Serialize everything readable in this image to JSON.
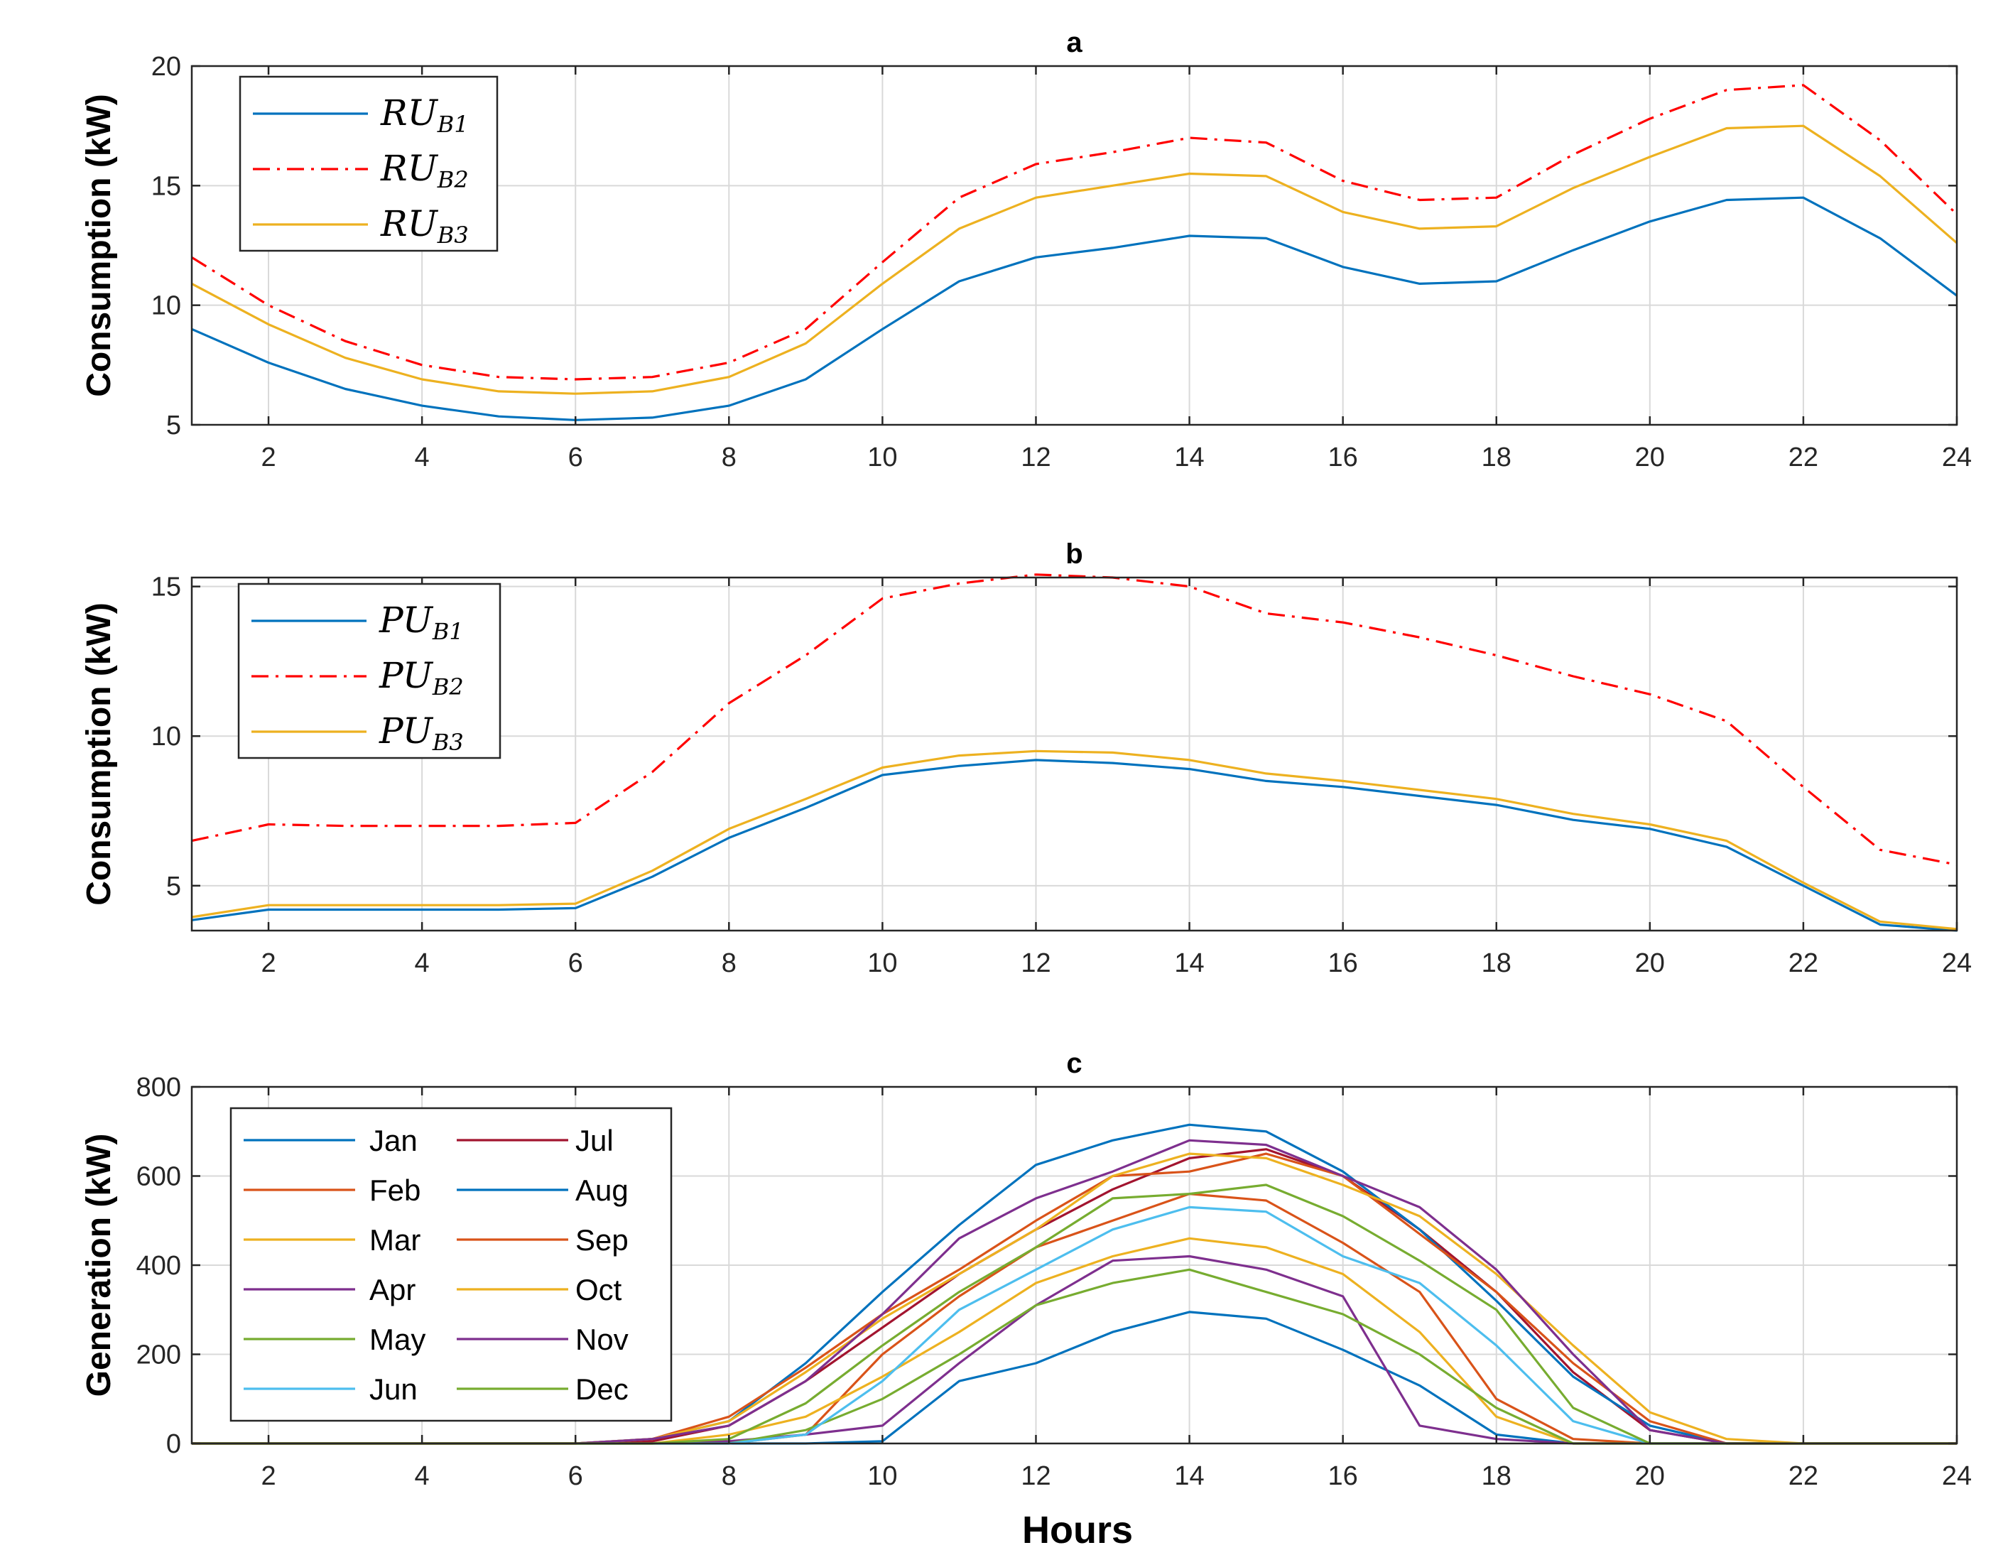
{
  "chart_data": [
    {
      "id": "a",
      "type": "line",
      "title": "a",
      "xlabel": "",
      "ylabel": "Consumption (kW)",
      "xlim": [
        1,
        24
      ],
      "ylim": [
        5,
        20
      ],
      "xticks": [
        2,
        4,
        6,
        8,
        10,
        12,
        14,
        16,
        18,
        20,
        22,
        24
      ],
      "yticks": [
        5,
        10,
        15,
        20
      ],
      "grid": true,
      "legend_position": "top-left",
      "x": [
        1,
        2,
        3,
        4,
        5,
        6,
        7,
        8,
        9,
        10,
        11,
        12,
        13,
        14,
        15,
        16,
        17,
        18,
        19,
        20,
        21,
        22,
        23,
        24
      ],
      "series": [
        {
          "name": "RU",
          "sub": "B1",
          "color": "#0072BD",
          "style": "solid",
          "values": [
            9.0,
            7.6,
            6.5,
            5.8,
            5.35,
            5.2,
            5.3,
            5.8,
            6.9,
            9.0,
            11.0,
            12.0,
            12.4,
            12.9,
            12.8,
            11.6,
            10.9,
            11.0,
            12.3,
            13.5,
            14.4,
            14.5,
            12.8,
            10.4
          ]
        },
        {
          "name": "RU",
          "sub": "B2",
          "color": "#FF0000",
          "style": "dashdot",
          "values": [
            12.0,
            10.0,
            8.5,
            7.5,
            7.0,
            6.9,
            7.0,
            7.6,
            9.0,
            11.8,
            14.5,
            15.9,
            16.4,
            17.0,
            16.8,
            15.2,
            14.4,
            14.5,
            16.3,
            17.8,
            19.0,
            19.2,
            16.9,
            13.8
          ]
        },
        {
          "name": "RU",
          "sub": "B3",
          "color": "#EDB120",
          "style": "solid",
          "values": [
            10.9,
            9.2,
            7.8,
            6.9,
            6.4,
            6.3,
            6.4,
            7.0,
            8.4,
            10.9,
            13.2,
            14.5,
            15.0,
            15.5,
            15.4,
            13.9,
            13.2,
            13.3,
            14.9,
            16.2,
            17.4,
            17.5,
            15.4,
            12.6
          ]
        }
      ]
    },
    {
      "id": "b",
      "type": "line",
      "title": "b",
      "xlabel": "",
      "ylabel": "Consumption (kW)",
      "xlim": [
        1,
        24
      ],
      "ylim": [
        3.5,
        15.3
      ],
      "xticks": [
        2,
        4,
        6,
        8,
        10,
        12,
        14,
        16,
        18,
        20,
        22,
        24
      ],
      "yticks": [
        5,
        10,
        15
      ],
      "grid": true,
      "legend_position": "top-left",
      "x": [
        1,
        2,
        3,
        4,
        5,
        6,
        7,
        8,
        9,
        10,
        11,
        12,
        13,
        14,
        15,
        16,
        17,
        18,
        19,
        20,
        21,
        22,
        23,
        24
      ],
      "series": [
        {
          "name": "PU",
          "sub": "B1",
          "color": "#0072BD",
          "style": "solid",
          "values": [
            3.85,
            4.2,
            4.2,
            4.2,
            4.2,
            4.25,
            5.3,
            6.6,
            7.6,
            8.7,
            9.0,
            9.2,
            9.1,
            8.9,
            8.5,
            8.3,
            8.0,
            7.7,
            7.2,
            6.9,
            6.3,
            5.0,
            3.7,
            3.5
          ]
        },
        {
          "name": "PU",
          "sub": "B2",
          "color": "#FF0000",
          "style": "dashdot",
          "values": [
            6.5,
            7.05,
            7.0,
            7.0,
            7.0,
            7.1,
            8.8,
            11.1,
            12.7,
            14.6,
            15.1,
            15.4,
            15.3,
            15.0,
            14.1,
            13.8,
            13.3,
            12.7,
            12.0,
            11.4,
            10.5,
            8.3,
            6.2,
            5.7
          ]
        },
        {
          "name": "PU",
          "sub": "B3",
          "color": "#EDB120",
          "style": "solid",
          "values": [
            3.95,
            4.35,
            4.35,
            4.35,
            4.35,
            4.4,
            5.5,
            6.9,
            7.9,
            8.95,
            9.35,
            9.5,
            9.45,
            9.2,
            8.75,
            8.5,
            8.2,
            7.9,
            7.4,
            7.05,
            6.5,
            5.1,
            3.8,
            3.55
          ]
        }
      ]
    },
    {
      "id": "c",
      "type": "line",
      "title": "c",
      "xlabel": "Hours",
      "ylabel": "Generation (kW)",
      "xlim": [
        1,
        24
      ],
      "ylim": [
        0,
        800
      ],
      "xticks": [
        2,
        4,
        6,
        8,
        10,
        12,
        14,
        16,
        18,
        20,
        22,
        24
      ],
      "yticks": [
        0,
        200,
        400,
        600,
        800
      ],
      "grid": true,
      "legend_position": "top-left",
      "x": [
        1,
        2,
        3,
        4,
        5,
        6,
        7,
        8,
        9,
        10,
        11,
        12,
        13,
        14,
        15,
        16,
        17,
        18,
        19,
        20,
        21,
        22,
        23,
        24
      ],
      "series": [
        {
          "name": "Jan",
          "color": "#0072BD",
          "values": [
            0,
            0,
            0,
            0,
            0,
            0,
            0,
            0,
            0,
            5,
            140,
            180,
            250,
            295,
            280,
            210,
            130,
            20,
            0,
            0,
            0,
            0,
            0,
            0
          ]
        },
        {
          "name": "Feb",
          "color": "#D95319",
          "values": [
            0,
            0,
            0,
            0,
            0,
            0,
            0,
            0,
            20,
            200,
            330,
            440,
            500,
            560,
            545,
            450,
            340,
            100,
            10,
            0,
            0,
            0,
            0,
            0
          ]
        },
        {
          "name": "Mar",
          "color": "#EDB120",
          "values": [
            0,
            0,
            0,
            0,
            0,
            0,
            0,
            20,
            60,
            150,
            250,
            360,
            420,
            460,
            440,
            380,
            250,
            60,
            0,
            0,
            0,
            0,
            0,
            0
          ]
        },
        {
          "name": "Apr",
          "color": "#7E2F8E",
          "values": [
            0,
            0,
            0,
            0,
            0,
            0,
            0,
            5,
            20,
            40,
            180,
            310,
            410,
            420,
            390,
            330,
            40,
            10,
            0,
            0,
            0,
            0,
            0,
            0
          ]
        },
        {
          "name": "May",
          "color": "#77AC30",
          "values": [
            0,
            0,
            0,
            0,
            0,
            0,
            0,
            0,
            30,
            100,
            200,
            310,
            360,
            390,
            340,
            290,
            200,
            80,
            0,
            0,
            0,
            0,
            0,
            0
          ]
        },
        {
          "name": "Jun",
          "color": "#4DBEEE",
          "values": [
            0,
            0,
            0,
            0,
            0,
            0,
            0,
            0,
            20,
            140,
            300,
            390,
            480,
            530,
            520,
            420,
            360,
            220,
            50,
            0,
            0,
            0,
            0,
            0
          ]
        },
        {
          "name": "Jul",
          "color": "#A2142F",
          "values": [
            0,
            0,
            0,
            0,
            0,
            0,
            5,
            40,
            140,
            260,
            380,
            480,
            570,
            640,
            660,
            600,
            480,
            340,
            160,
            30,
            0,
            0,
            0,
            0
          ]
        },
        {
          "name": "Aug",
          "color": "#0072BD",
          "values": [
            0,
            0,
            0,
            0,
            0,
            0,
            10,
            50,
            180,
            340,
            490,
            625,
            680,
            715,
            700,
            610,
            480,
            320,
            150,
            40,
            0,
            0,
            0,
            0
          ]
        },
        {
          "name": "Sep",
          "color": "#D95319",
          "values": [
            0,
            0,
            0,
            0,
            0,
            0,
            10,
            60,
            170,
            290,
            390,
            500,
            600,
            610,
            650,
            600,
            470,
            340,
            180,
            50,
            0,
            0,
            0,
            0
          ]
        },
        {
          "name": "Oct",
          "color": "#EDB120",
          "values": [
            0,
            0,
            0,
            0,
            0,
            0,
            10,
            50,
            160,
            280,
            380,
            480,
            600,
            650,
            640,
            580,
            510,
            380,
            220,
            70,
            10,
            0,
            0,
            0
          ]
        },
        {
          "name": "Nov",
          "color": "#7E2F8E",
          "values": [
            0,
            0,
            0,
            0,
            0,
            0,
            10,
            40,
            140,
            290,
            460,
            550,
            610,
            680,
            670,
            600,
            530,
            390,
            200,
            30,
            0,
            0,
            0,
            0
          ]
        },
        {
          "name": "Dec",
          "color": "#77AC30",
          "values": [
            0,
            0,
            0,
            0,
            0,
            0,
            0,
            10,
            90,
            220,
            340,
            440,
            550,
            560,
            580,
            510,
            410,
            300,
            80,
            0,
            0,
            0,
            0,
            0
          ]
        }
      ]
    }
  ]
}
